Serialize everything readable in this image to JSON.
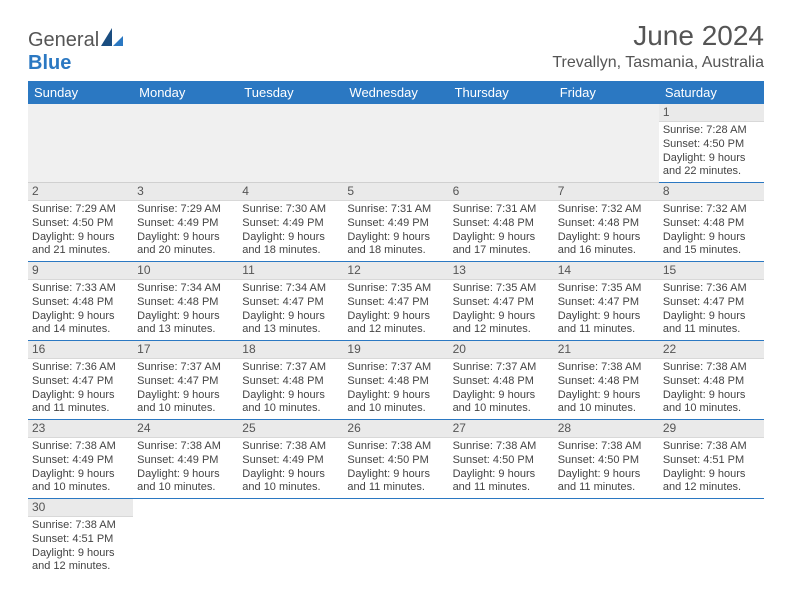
{
  "logo": {
    "text1": "Genera",
    "text2": "l",
    "text3": "Blue"
  },
  "header": {
    "month_title": "June 2024",
    "location": "Trevallyn, Tasmania, Australia"
  },
  "colors": {
    "brand_blue": "#2b78c2",
    "text_gray": "#555555",
    "cell_text": "#444444",
    "daynum_bg": "#eaeaea",
    "empty_bg": "#f0f0f0"
  },
  "day_labels": [
    "Sunday",
    "Monday",
    "Tuesday",
    "Wednesday",
    "Thursday",
    "Friday",
    "Saturday"
  ],
  "weeks": [
    [
      null,
      null,
      null,
      null,
      null,
      null,
      {
        "n": "1",
        "sr": "Sunrise: 7:28 AM",
        "ss": "Sunset: 4:50 PM",
        "d1": "Daylight: 9 hours",
        "d2": "and 22 minutes."
      }
    ],
    [
      {
        "n": "2",
        "sr": "Sunrise: 7:29 AM",
        "ss": "Sunset: 4:50 PM",
        "d1": "Daylight: 9 hours",
        "d2": "and 21 minutes."
      },
      {
        "n": "3",
        "sr": "Sunrise: 7:29 AM",
        "ss": "Sunset: 4:49 PM",
        "d1": "Daylight: 9 hours",
        "d2": "and 20 minutes."
      },
      {
        "n": "4",
        "sr": "Sunrise: 7:30 AM",
        "ss": "Sunset: 4:49 PM",
        "d1": "Daylight: 9 hours",
        "d2": "and 18 minutes."
      },
      {
        "n": "5",
        "sr": "Sunrise: 7:31 AM",
        "ss": "Sunset: 4:49 PM",
        "d1": "Daylight: 9 hours",
        "d2": "and 18 minutes."
      },
      {
        "n": "6",
        "sr": "Sunrise: 7:31 AM",
        "ss": "Sunset: 4:48 PM",
        "d1": "Daylight: 9 hours",
        "d2": "and 17 minutes."
      },
      {
        "n": "7",
        "sr": "Sunrise: 7:32 AM",
        "ss": "Sunset: 4:48 PM",
        "d1": "Daylight: 9 hours",
        "d2": "and 16 minutes."
      },
      {
        "n": "8",
        "sr": "Sunrise: 7:32 AM",
        "ss": "Sunset: 4:48 PM",
        "d1": "Daylight: 9 hours",
        "d2": "and 15 minutes."
      }
    ],
    [
      {
        "n": "9",
        "sr": "Sunrise: 7:33 AM",
        "ss": "Sunset: 4:48 PM",
        "d1": "Daylight: 9 hours",
        "d2": "and 14 minutes."
      },
      {
        "n": "10",
        "sr": "Sunrise: 7:34 AM",
        "ss": "Sunset: 4:48 PM",
        "d1": "Daylight: 9 hours",
        "d2": "and 13 minutes."
      },
      {
        "n": "11",
        "sr": "Sunrise: 7:34 AM",
        "ss": "Sunset: 4:47 PM",
        "d1": "Daylight: 9 hours",
        "d2": "and 13 minutes."
      },
      {
        "n": "12",
        "sr": "Sunrise: 7:35 AM",
        "ss": "Sunset: 4:47 PM",
        "d1": "Daylight: 9 hours",
        "d2": "and 12 minutes."
      },
      {
        "n": "13",
        "sr": "Sunrise: 7:35 AM",
        "ss": "Sunset: 4:47 PM",
        "d1": "Daylight: 9 hours",
        "d2": "and 12 minutes."
      },
      {
        "n": "14",
        "sr": "Sunrise: 7:35 AM",
        "ss": "Sunset: 4:47 PM",
        "d1": "Daylight: 9 hours",
        "d2": "and 11 minutes."
      },
      {
        "n": "15",
        "sr": "Sunrise: 7:36 AM",
        "ss": "Sunset: 4:47 PM",
        "d1": "Daylight: 9 hours",
        "d2": "and 11 minutes."
      }
    ],
    [
      {
        "n": "16",
        "sr": "Sunrise: 7:36 AM",
        "ss": "Sunset: 4:47 PM",
        "d1": "Daylight: 9 hours",
        "d2": "and 11 minutes."
      },
      {
        "n": "17",
        "sr": "Sunrise: 7:37 AM",
        "ss": "Sunset: 4:47 PM",
        "d1": "Daylight: 9 hours",
        "d2": "and 10 minutes."
      },
      {
        "n": "18",
        "sr": "Sunrise: 7:37 AM",
        "ss": "Sunset: 4:48 PM",
        "d1": "Daylight: 9 hours",
        "d2": "and 10 minutes."
      },
      {
        "n": "19",
        "sr": "Sunrise: 7:37 AM",
        "ss": "Sunset: 4:48 PM",
        "d1": "Daylight: 9 hours",
        "d2": "and 10 minutes."
      },
      {
        "n": "20",
        "sr": "Sunrise: 7:37 AM",
        "ss": "Sunset: 4:48 PM",
        "d1": "Daylight: 9 hours",
        "d2": "and 10 minutes."
      },
      {
        "n": "21",
        "sr": "Sunrise: 7:38 AM",
        "ss": "Sunset: 4:48 PM",
        "d1": "Daylight: 9 hours",
        "d2": "and 10 minutes."
      },
      {
        "n": "22",
        "sr": "Sunrise: 7:38 AM",
        "ss": "Sunset: 4:48 PM",
        "d1": "Daylight: 9 hours",
        "d2": "and 10 minutes."
      }
    ],
    [
      {
        "n": "23",
        "sr": "Sunrise: 7:38 AM",
        "ss": "Sunset: 4:49 PM",
        "d1": "Daylight: 9 hours",
        "d2": "and 10 minutes."
      },
      {
        "n": "24",
        "sr": "Sunrise: 7:38 AM",
        "ss": "Sunset: 4:49 PM",
        "d1": "Daylight: 9 hours",
        "d2": "and 10 minutes."
      },
      {
        "n": "25",
        "sr": "Sunrise: 7:38 AM",
        "ss": "Sunset: 4:49 PM",
        "d1": "Daylight: 9 hours",
        "d2": "and 10 minutes."
      },
      {
        "n": "26",
        "sr": "Sunrise: 7:38 AM",
        "ss": "Sunset: 4:50 PM",
        "d1": "Daylight: 9 hours",
        "d2": "and 11 minutes."
      },
      {
        "n": "27",
        "sr": "Sunrise: 7:38 AM",
        "ss": "Sunset: 4:50 PM",
        "d1": "Daylight: 9 hours",
        "d2": "and 11 minutes."
      },
      {
        "n": "28",
        "sr": "Sunrise: 7:38 AM",
        "ss": "Sunset: 4:50 PM",
        "d1": "Daylight: 9 hours",
        "d2": "and 11 minutes."
      },
      {
        "n": "29",
        "sr": "Sunrise: 7:38 AM",
        "ss": "Sunset: 4:51 PM",
        "d1": "Daylight: 9 hours",
        "d2": "and 12 minutes."
      }
    ],
    [
      {
        "n": "30",
        "sr": "Sunrise: 7:38 AM",
        "ss": "Sunset: 4:51 PM",
        "d1": "Daylight: 9 hours",
        "d2": "and 12 minutes."
      },
      null,
      null,
      null,
      null,
      null,
      null
    ]
  ]
}
